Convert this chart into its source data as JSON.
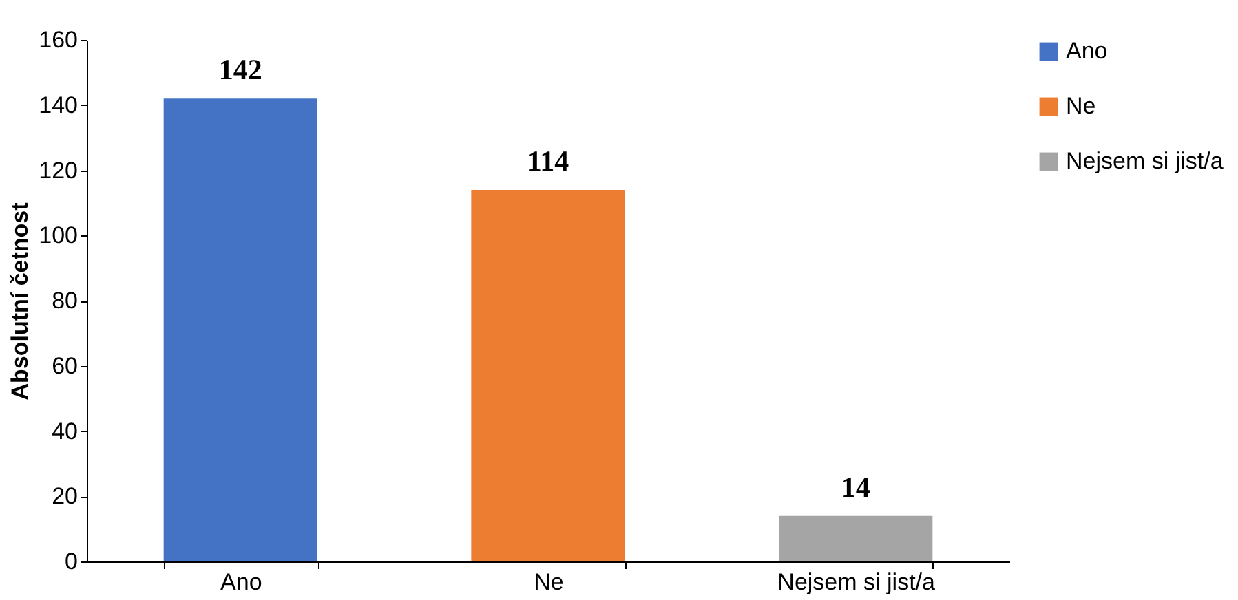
{
  "chart_data": {
    "type": "bar",
    "ylabel": "Absolutní četnost",
    "categories": [
      "Ano",
      "Ne",
      "Nejsem si jist/a"
    ],
    "series": [
      {
        "name": "Ano",
        "color": "#4472c4",
        "values": [
          142,
          null,
          null
        ]
      },
      {
        "name": "Ne",
        "color": "#ed7d31",
        "values": [
          null,
          114,
          null
        ]
      },
      {
        "name": "Nejsem si jist/a",
        "color": "#a5a5a5",
        "values": [
          null,
          null,
          14
        ]
      }
    ],
    "ylim": [
      0,
      160
    ],
    "yticks": [
      0,
      20,
      40,
      60,
      80,
      100,
      120,
      140,
      160
    ],
    "grid": false,
    "legend": "right",
    "data_labels": true
  }
}
